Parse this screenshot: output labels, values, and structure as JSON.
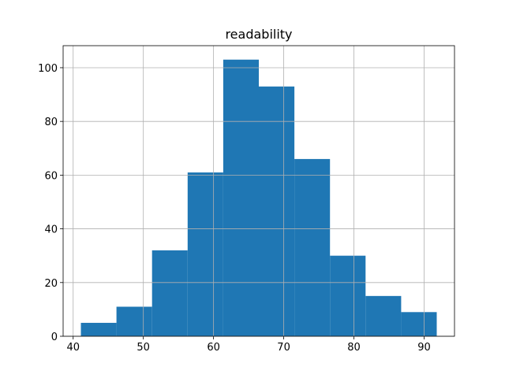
{
  "chart_data": {
    "type": "histogram",
    "title": "readability",
    "bins": [
      41.1,
      46.17,
      51.24,
      56.31,
      61.38,
      66.45,
      71.52,
      76.59,
      81.66,
      86.73,
      91.8
    ],
    "values": [
      5,
      11,
      32,
      61,
      103,
      93,
      66,
      30,
      15,
      9
    ],
    "color": "#1f77b4",
    "xlim": [
      38.57,
      94.33
    ],
    "xticks": [
      40,
      50,
      60,
      70,
      80,
      90
    ],
    "ylim": [
      0,
      108.2
    ],
    "yticks": [
      0,
      20,
      40,
      60,
      80,
      100
    ],
    "grid": true
  }
}
